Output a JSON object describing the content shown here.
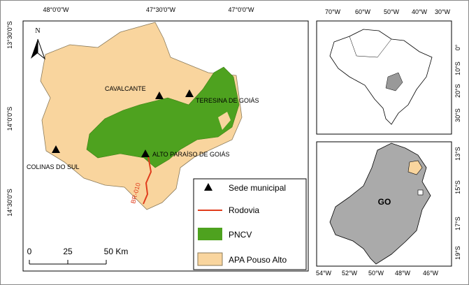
{
  "main_map": {
    "lon_labels": [
      "48°0'0\"W",
      "47°30'0\"W",
      "47°0'0\"W"
    ],
    "lat_labels": [
      "13°30'0\"S",
      "14°0'0\"S",
      "14°30'0\"S"
    ],
    "north": "N",
    "places": [
      "CAVALCANTE",
      "TERESINA DE GOIÁS",
      "COLINAS DO SUL",
      "ALTO PARAÍSO DE GOIÁS"
    ],
    "road_label": "BR-010",
    "legend": [
      "Sede municipal",
      "Rodovia",
      "PNCV",
      "APA Pouso Alto"
    ],
    "scale": [
      "0",
      "25",
      "50 Km"
    ]
  },
  "inset_brazil": {
    "lon_labels": [
      "70°W",
      "60°W",
      "50°W",
      "40°W",
      "30°W"
    ],
    "lat_labels": [
      "0°",
      "10°S",
      "20°S",
      "30°S"
    ]
  },
  "inset_goias": {
    "lon_labels": [
      "54°W",
      "52°W",
      "50°W",
      "48°W",
      "46°W"
    ],
    "lat_labels": [
      "13°S",
      "15°S",
      "17°S",
      "19°S"
    ],
    "label": "GO"
  }
}
